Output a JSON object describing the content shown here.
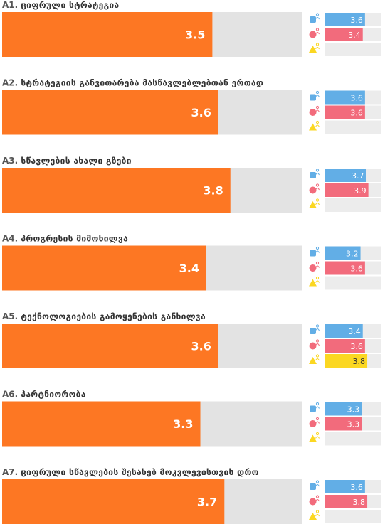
{
  "chart_data": {
    "type": "bar",
    "scale_max": 5,
    "colors": {
      "main": "#fd7723",
      "track": "#e3e3e3",
      "group1": "#62aee6",
      "group2": "#f26b7c",
      "group3": "#fbd722"
    },
    "icons": [
      "square-person-icon",
      "circle-person-icon",
      "triangle-person-icon"
    ],
    "items": [
      {
        "code": "A1.",
        "label": "ციფრული სტრატეგია",
        "value": 3.5,
        "groups": [
          3.6,
          3.4,
          null
        ]
      },
      {
        "code": "A2.",
        "label": "სტრატეგიის განვითარება მასწავლებლებთან ერთად",
        "value": 3.6,
        "groups": [
          3.6,
          3.6,
          null
        ]
      },
      {
        "code": "A3.",
        "label": "სწავლების ახალი გზები",
        "value": 3.8,
        "groups": [
          3.7,
          3.9,
          null
        ]
      },
      {
        "code": "A4.",
        "label": "პროგრესის მიმოხილვა",
        "value": 3.4,
        "groups": [
          3.2,
          3.6,
          null
        ]
      },
      {
        "code": "A5.",
        "label": "ტექნოლოგიების გამოყენების განხილვა",
        "value": 3.6,
        "groups": [
          3.4,
          3.6,
          3.8
        ]
      },
      {
        "code": "A6.",
        "label": "პარტნიორობა",
        "value": 3.3,
        "groups": [
          3.3,
          3.3,
          null
        ]
      },
      {
        "code": "A7.",
        "label": "ციფრული სწავლების შესახებ მოკვლევისთვის დრო",
        "value": 3.7,
        "groups": [
          3.6,
          3.8,
          null
        ]
      }
    ]
  }
}
